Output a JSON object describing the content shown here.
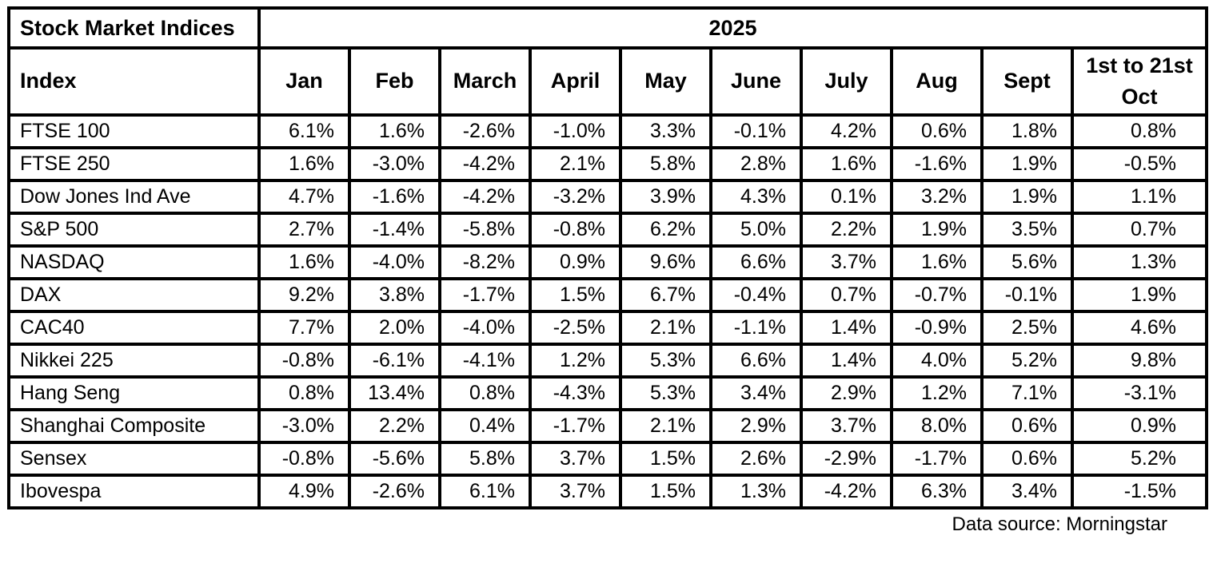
{
  "table": {
    "corner_label": "Stock Market Indices",
    "year_header": "2025",
    "index_header": "Index",
    "month_headers": [
      "Jan",
      "Feb",
      "March",
      "April",
      "May",
      "June",
      "July",
      "Aug",
      "Sept",
      "1st to 21st Oct"
    ],
    "rows": [
      {
        "index": "FTSE 100",
        "values": [
          "6.1%",
          "1.6%",
          "-2.6%",
          "-1.0%",
          "3.3%",
          "-0.1%",
          "4.2%",
          "0.6%",
          "1.8%",
          "0.8%"
        ]
      },
      {
        "index": "FTSE 250",
        "values": [
          "1.6%",
          "-3.0%",
          "-4.2%",
          "2.1%",
          "5.8%",
          "2.8%",
          "1.6%",
          "-1.6%",
          "1.9%",
          "-0.5%"
        ]
      },
      {
        "index": "Dow Jones Ind Ave",
        "values": [
          "4.7%",
          "-1.6%",
          "-4.2%",
          "-3.2%",
          "3.9%",
          "4.3%",
          "0.1%",
          "3.2%",
          "1.9%",
          "1.1%"
        ]
      },
      {
        "index": "S&P 500",
        "values": [
          "2.7%",
          "-1.4%",
          "-5.8%",
          "-0.8%",
          "6.2%",
          "5.0%",
          "2.2%",
          "1.9%",
          "3.5%",
          "0.7%"
        ]
      },
      {
        "index": "NASDAQ",
        "values": [
          "1.6%",
          "-4.0%",
          "-8.2%",
          "0.9%",
          "9.6%",
          "6.6%",
          "3.7%",
          "1.6%",
          "5.6%",
          "1.3%"
        ]
      },
      {
        "index": "DAX",
        "values": [
          "9.2%",
          "3.8%",
          "-1.7%",
          "1.5%",
          "6.7%",
          "-0.4%",
          "0.7%",
          "-0.7%",
          "-0.1%",
          "1.9%"
        ]
      },
      {
        "index": "CAC40",
        "values": [
          "7.7%",
          "2.0%",
          "-4.0%",
          "-2.5%",
          "2.1%",
          "-1.1%",
          "1.4%",
          "-0.9%",
          "2.5%",
          "4.6%"
        ]
      },
      {
        "index": "Nikkei 225",
        "values": [
          "-0.8%",
          "-6.1%",
          "-4.1%",
          "1.2%",
          "5.3%",
          "6.6%",
          "1.4%",
          "4.0%",
          "5.2%",
          "9.8%"
        ]
      },
      {
        "index": "Hang Seng",
        "values": [
          "0.8%",
          "13.4%",
          "0.8%",
          "-4.3%",
          "5.3%",
          "3.4%",
          "2.9%",
          "1.2%",
          "7.1%",
          "-3.1%"
        ]
      },
      {
        "index": "Shanghai Composite",
        "values": [
          "-3.0%",
          "2.2%",
          "0.4%",
          "-1.7%",
          "2.1%",
          "2.9%",
          "3.7%",
          "8.0%",
          "0.6%",
          "0.9%"
        ]
      },
      {
        "index": "Sensex",
        "values": [
          "-0.8%",
          "-5.6%",
          "5.8%",
          "3.7%",
          "1.5%",
          "2.6%",
          "-2.9%",
          "-1.7%",
          "0.6%",
          "5.2%"
        ]
      },
      {
        "index": "Ibovespa",
        "values": [
          "4.9%",
          "-2.6%",
          "6.1%",
          "3.7%",
          "1.5%",
          "1.3%",
          "-4.2%",
          "6.3%",
          "3.4%",
          "-1.5%"
        ]
      }
    ]
  },
  "footer": {
    "source_label": "Data source: Morningstar"
  },
  "colors": {
    "border": "#000000",
    "text": "#000000",
    "background": "#ffffff"
  },
  "chart_data": {
    "type": "table",
    "title": "Stock Market Indices",
    "period": "2025",
    "unit": "%",
    "columns": [
      "Jan",
      "Feb",
      "March",
      "April",
      "May",
      "June",
      "July",
      "Aug",
      "Sept",
      "1st to 21st Oct"
    ],
    "series": [
      {
        "name": "FTSE 100",
        "values": [
          6.1,
          1.6,
          -2.6,
          -1.0,
          3.3,
          -0.1,
          4.2,
          0.6,
          1.8,
          0.8
        ]
      },
      {
        "name": "FTSE 250",
        "values": [
          1.6,
          -3.0,
          -4.2,
          2.1,
          5.8,
          2.8,
          1.6,
          -1.6,
          1.9,
          -0.5
        ]
      },
      {
        "name": "Dow Jones Ind Ave",
        "values": [
          4.7,
          -1.6,
          -4.2,
          -3.2,
          3.9,
          4.3,
          0.1,
          3.2,
          1.9,
          1.1
        ]
      },
      {
        "name": "S&P 500",
        "values": [
          2.7,
          -1.4,
          -5.8,
          -0.8,
          6.2,
          5.0,
          2.2,
          1.9,
          3.5,
          0.7
        ]
      },
      {
        "name": "NASDAQ",
        "values": [
          1.6,
          -4.0,
          -8.2,
          0.9,
          9.6,
          6.6,
          3.7,
          1.6,
          5.6,
          1.3
        ]
      },
      {
        "name": "DAX",
        "values": [
          9.2,
          3.8,
          -1.7,
          1.5,
          6.7,
          -0.4,
          0.7,
          -0.7,
          -0.1,
          1.9
        ]
      },
      {
        "name": "CAC40",
        "values": [
          7.7,
          2.0,
          -4.0,
          -2.5,
          2.1,
          -1.1,
          1.4,
          -0.9,
          2.5,
          4.6
        ]
      },
      {
        "name": "Nikkei 225",
        "values": [
          -0.8,
          -6.1,
          -4.1,
          1.2,
          5.3,
          6.6,
          1.4,
          4.0,
          5.2,
          9.8
        ]
      },
      {
        "name": "Hang Seng",
        "values": [
          0.8,
          13.4,
          0.8,
          -4.3,
          5.3,
          3.4,
          2.9,
          1.2,
          7.1,
          -3.1
        ]
      },
      {
        "name": "Shanghai Composite",
        "values": [
          -3.0,
          2.2,
          0.4,
          -1.7,
          2.1,
          2.9,
          3.7,
          8.0,
          0.6,
          0.9
        ]
      },
      {
        "name": "Sensex",
        "values": [
          -0.8,
          -5.6,
          5.8,
          3.7,
          1.5,
          2.6,
          -2.9,
          -1.7,
          0.6,
          5.2
        ]
      },
      {
        "name": "Ibovespa",
        "values": [
          4.9,
          -2.6,
          6.1,
          3.7,
          1.5,
          1.3,
          -4.2,
          6.3,
          3.4,
          -1.5
        ]
      }
    ],
    "source": "Data source: Morningstar",
    "layout": {
      "numbers_alignment": "right",
      "header_bold": true,
      "grid": "all-borders"
    }
  }
}
